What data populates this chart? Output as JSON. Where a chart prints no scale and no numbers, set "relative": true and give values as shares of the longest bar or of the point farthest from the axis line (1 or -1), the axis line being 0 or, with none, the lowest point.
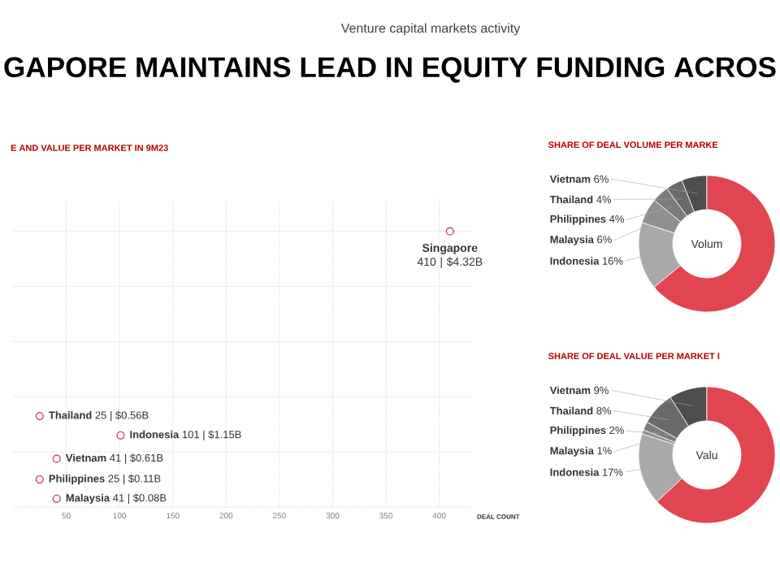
{
  "chart_data": [
    {
      "type": "scatter",
      "title": "GAPORE MAINTAINS LEAD IN EQUITY FUNDING ACROS",
      "subtitle": "Venture capital markets activity",
      "relative": true,
      "x": [
        410,
        101,
        25,
        41,
        25,
        41
      ],
      "values": [
        1,
        0.26,
        0.33,
        0.175,
        0.1,
        0.03
      ],
      "color": "#c8485a",
      "marker": "circle",
      "grid": true,
      "tick_labels": "x",
      "xlim": [
        0,
        430
      ],
      "xticks": [
        50,
        100,
        150,
        200,
        250,
        300,
        350,
        400
      ],
      "xlabel": "DEAL COUNT",
      "annotations": [
        "E AND VALUE PER MARKET IN 9M23",
        {
          "text": "**Singapore** 410 | $4.32B",
          "x": 410,
          "y": 1
        },
        {
          "text": "**Indonesia** 101 | $1.15B",
          "x": 101,
          "y": 0.26
        },
        {
          "text": "**Thailand** 25 | $0.56B",
          "x": 25,
          "y": 0.33
        },
        {
          "text": "**Vietnam** 41 | $0.61B",
          "x": 41,
          "y": 0.175
        },
        {
          "text": "**Philippines** 25 | $0.11B",
          "x": 25,
          "y": 0.1
        },
        {
          "text": "**Malaysia** 41 | $0.08B",
          "x": 41,
          "y": 0.03
        }
      ]
    },
    {
      "type": "donut",
      "title": "SHARE OF DEAL VOLUME PER MARKE",
      "categories": [
        "Vietnam",
        "Thailand",
        "Philippines",
        "Malaysia",
        "Indonesia",
        null
      ],
      "values": [
        6,
        4,
        4,
        6,
        16,
        64
      ],
      "value_labels": [
        "6%",
        "4%",
        "4%",
        "6%",
        "16%",
        null
      ],
      "colors": [
        "#4d4d4d",
        "#6a6a6a",
        "#7c7c7c",
        "#8f8f8f",
        "#a9a9a9",
        "#e04550"
      ],
      "annotations": [
        "Volum"
      ]
    },
    {
      "type": "donut",
      "title": "SHARE OF DEAL VALUE PER MARKET I",
      "categories": [
        "Vietnam",
        "Thailand",
        "Philippines",
        "Malaysia",
        "Indonesia",
        null
      ],
      "values": [
        9,
        8,
        2,
        1,
        17,
        63
      ],
      "value_labels": [
        "9%",
        "8%",
        "2%",
        "1%",
        "17%",
        null
      ],
      "colors": [
        "#4d4d4d",
        "#6a6a6a",
        "#7c7c7c",
        "#8f8f8f",
        "#a9a9a9",
        "#e04550"
      ],
      "annotations": [
        "Valu"
      ]
    }
  ]
}
